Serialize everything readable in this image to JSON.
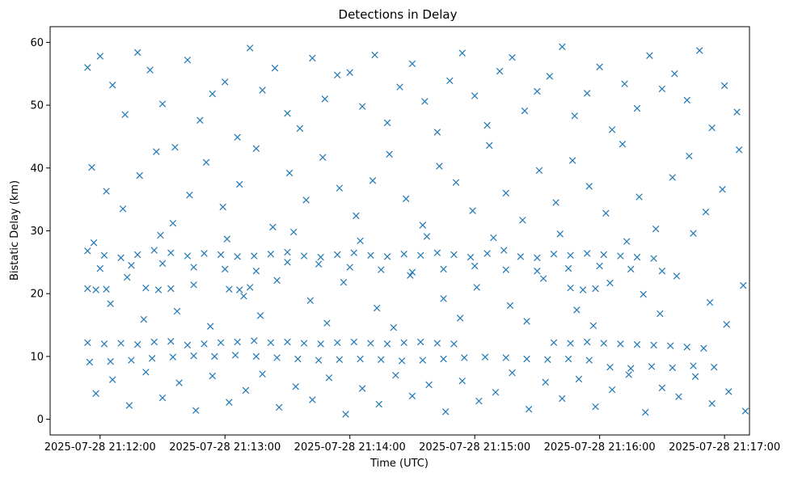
{
  "chart_data": {
    "type": "scatter",
    "title": "Detections in Delay",
    "xlabel": "Time (UTC)",
    "ylabel": "Bistatic Delay (km)",
    "marker": "x",
    "marker_color": "#1f77b4",
    "x_axis": {
      "unit": "seconds after 2025-07-28 21:11:00",
      "range": [
        36,
        372
      ],
      "ticks": [
        60,
        120,
        180,
        240,
        300,
        360
      ],
      "tick_labels": [
        "2025-07-28 21:12:00",
        "2025-07-28 21:13:00",
        "2025-07-28 21:14:00",
        "2025-07-28 21:15:00",
        "2025-07-28 21:16:00",
        "2025-07-28 21:17:00"
      ]
    },
    "y_axis": {
      "range": [
        -2.5,
        62.5
      ],
      "ticks": [
        0,
        10,
        20,
        30,
        40,
        50,
        60
      ],
      "tick_labels": [
        "0",
        "10",
        "20",
        "30",
        "40",
        "50",
        "60"
      ]
    },
    "series": [
      {
        "name": "Detections",
        "points": [
          [
            54,
            26.8
          ],
          [
            62,
            26.1
          ],
          [
            70,
            25.7
          ],
          [
            78,
            26.2
          ],
          [
            86,
            26.9
          ],
          [
            94,
            26.5
          ],
          [
            102,
            26.0
          ],
          [
            110,
            26.4
          ],
          [
            118,
            26.2
          ],
          [
            126,
            25.9
          ],
          [
            134,
            26.0
          ],
          [
            142,
            26.3
          ],
          [
            150,
            26.6
          ],
          [
            158,
            26.0
          ],
          [
            166,
            25.8
          ],
          [
            174,
            26.2
          ],
          [
            182,
            26.5
          ],
          [
            190,
            26.1
          ],
          [
            198,
            25.9
          ],
          [
            206,
            26.3
          ],
          [
            214,
            26.1
          ],
          [
            222,
            26.5
          ],
          [
            230,
            26.2
          ],
          [
            238,
            25.8
          ],
          [
            246,
            26.4
          ],
          [
            254,
            26.9
          ],
          [
            262,
            25.9
          ],
          [
            270,
            25.7
          ],
          [
            278,
            26.3
          ],
          [
            286,
            26.1
          ],
          [
            294,
            26.4
          ],
          [
            302,
            26.2
          ],
          [
            310,
            26.0
          ],
          [
            318,
            25.8
          ],
          [
            326,
            25.6
          ],
          [
            60,
            24.0
          ],
          [
            75,
            24.5
          ],
          [
            90,
            24.8
          ],
          [
            105,
            24.2
          ],
          [
            120,
            23.9
          ],
          [
            135,
            23.6
          ],
          [
            150,
            25.0
          ],
          [
            165,
            24.7
          ],
          [
            180,
            24.2
          ],
          [
            195,
            23.8
          ],
          [
            210,
            23.4
          ],
          [
            225,
            23.9
          ],
          [
            240,
            24.4
          ],
          [
            255,
            23.8
          ],
          [
            270,
            23.6
          ],
          [
            285,
            24.0
          ],
          [
            300,
            24.4
          ],
          [
            315,
            23.9
          ],
          [
            330,
            23.6
          ],
          [
            54,
            20.8
          ],
          [
            58,
            20.6
          ],
          [
            63,
            20.7
          ],
          [
            82,
            20.9
          ],
          [
            88,
            20.6
          ],
          [
            94,
            20.8
          ],
          [
            122,
            20.7
          ],
          [
            127,
            20.6
          ],
          [
            132,
            21.0
          ],
          [
            286,
            20.9
          ],
          [
            292,
            20.6
          ],
          [
            298,
            20.8
          ],
          [
            54,
            12.2
          ],
          [
            62,
            12.0
          ],
          [
            70,
            12.1
          ],
          [
            78,
            11.9
          ],
          [
            86,
            12.3
          ],
          [
            94,
            12.4
          ],
          [
            102,
            11.8
          ],
          [
            110,
            12.0
          ],
          [
            118,
            12.2
          ],
          [
            126,
            12.3
          ],
          [
            134,
            12.5
          ],
          [
            142,
            12.2
          ],
          [
            150,
            12.3
          ],
          [
            158,
            12.1
          ],
          [
            166,
            12.0
          ],
          [
            174,
            12.2
          ],
          [
            182,
            12.3
          ],
          [
            190,
            12.1
          ],
          [
            198,
            12.0
          ],
          [
            206,
            12.2
          ],
          [
            214,
            12.3
          ],
          [
            222,
            12.1
          ],
          [
            230,
            12.0
          ],
          [
            278,
            12.2
          ],
          [
            286,
            12.1
          ],
          [
            294,
            12.3
          ],
          [
            302,
            12.1
          ],
          [
            310,
            12.0
          ],
          [
            318,
            11.9
          ],
          [
            326,
            11.8
          ],
          [
            334,
            11.7
          ],
          [
            342,
            11.5
          ],
          [
            350,
            11.3
          ],
          [
            55,
            9.1
          ],
          [
            65,
            9.2
          ],
          [
            75,
            9.4
          ],
          [
            85,
            9.7
          ],
          [
            95,
            9.9
          ],
          [
            105,
            10.1
          ],
          [
            115,
            10.0
          ],
          [
            125,
            10.2
          ],
          [
            135,
            10.0
          ],
          [
            145,
            9.8
          ],
          [
            155,
            9.6
          ],
          [
            165,
            9.4
          ],
          [
            175,
            9.5
          ],
          [
            185,
            9.6
          ],
          [
            195,
            9.5
          ],
          [
            205,
            9.3
          ],
          [
            215,
            9.4
          ],
          [
            225,
            9.6
          ],
          [
            235,
            9.8
          ],
          [
            245,
            9.9
          ],
          [
            255,
            9.8
          ],
          [
            265,
            9.6
          ],
          [
            275,
            9.5
          ],
          [
            285,
            9.6
          ],
          [
            295,
            9.4
          ],
          [
            305,
            8.3
          ],
          [
            315,
            8.1
          ],
          [
            325,
            8.4
          ],
          [
            335,
            8.2
          ],
          [
            345,
            8.5
          ],
          [
            355,
            8.3
          ],
          [
            54,
            56.0
          ],
          [
            60,
            57.8
          ],
          [
            66,
            53.2
          ],
          [
            72,
            48.5
          ],
          [
            78,
            58.4
          ],
          [
            84,
            55.6
          ],
          [
            90,
            50.2
          ],
          [
            96,
            43.3
          ],
          [
            102,
            57.2
          ],
          [
            108,
            47.6
          ],
          [
            114,
            51.8
          ],
          [
            120,
            53.7
          ],
          [
            126,
            44.9
          ],
          [
            132,
            59.1
          ],
          [
            138,
            52.4
          ],
          [
            144,
            55.9
          ],
          [
            150,
            48.7
          ],
          [
            156,
            46.3
          ],
          [
            162,
            57.5
          ],
          [
            168,
            51.0
          ],
          [
            174,
            54.8
          ],
          [
            180,
            55.2
          ],
          [
            186,
            49.8
          ],
          [
            192,
            58.0
          ],
          [
            198,
            47.2
          ],
          [
            204,
            52.9
          ],
          [
            210,
            56.6
          ],
          [
            216,
            50.6
          ],
          [
            222,
            45.7
          ],
          [
            228,
            53.9
          ],
          [
            234,
            58.3
          ],
          [
            240,
            51.5
          ],
          [
            246,
            46.8
          ],
          [
            252,
            55.4
          ],
          [
            258,
            57.6
          ],
          [
            264,
            49.1
          ],
          [
            270,
            52.2
          ],
          [
            276,
            54.6
          ],
          [
            282,
            59.3
          ],
          [
            288,
            48.3
          ],
          [
            294,
            51.9
          ],
          [
            300,
            56.1
          ],
          [
            306,
            46.1
          ],
          [
            312,
            53.4
          ],
          [
            318,
            49.5
          ],
          [
            324,
            57.9
          ],
          [
            330,
            52.6
          ],
          [
            336,
            55.0
          ],
          [
            342,
            50.8
          ],
          [
            348,
            58.7
          ],
          [
            354,
            46.4
          ],
          [
            360,
            53.1
          ],
          [
            366,
            48.9
          ],
          [
            56,
            40.1
          ],
          [
            63,
            36.3
          ],
          [
            71,
            33.5
          ],
          [
            79,
            38.8
          ],
          [
            87,
            42.6
          ],
          [
            95,
            31.2
          ],
          [
            103,
            35.7
          ],
          [
            111,
            40.9
          ],
          [
            119,
            33.8
          ],
          [
            127,
            37.4
          ],
          [
            135,
            43.1
          ],
          [
            143,
            30.6
          ],
          [
            151,
            39.2
          ],
          [
            159,
            34.9
          ],
          [
            167,
            41.7
          ],
          [
            175,
            36.8
          ],
          [
            183,
            32.4
          ],
          [
            191,
            38.0
          ],
          [
            199,
            42.2
          ],
          [
            207,
            35.1
          ],
          [
            215,
            30.9
          ],
          [
            223,
            40.3
          ],
          [
            231,
            37.7
          ],
          [
            239,
            33.2
          ],
          [
            247,
            43.6
          ],
          [
            255,
            36.0
          ],
          [
            263,
            31.7
          ],
          [
            271,
            39.6
          ],
          [
            279,
            34.5
          ],
          [
            287,
            41.2
          ],
          [
            295,
            37.1
          ],
          [
            303,
            32.8
          ],
          [
            311,
            43.8
          ],
          [
            319,
            35.4
          ],
          [
            327,
            30.3
          ],
          [
            335,
            38.5
          ],
          [
            343,
            41.9
          ],
          [
            351,
            33.0
          ],
          [
            359,
            36.6
          ],
          [
            367,
            42.9
          ],
          [
            57,
            28.1
          ],
          [
            65,
            18.4
          ],
          [
            73,
            22.6
          ],
          [
            81,
            15.9
          ],
          [
            89,
            29.3
          ],
          [
            97,
            17.2
          ],
          [
            105,
            21.4
          ],
          [
            113,
            14.8
          ],
          [
            121,
            28.7
          ],
          [
            129,
            19.6
          ],
          [
            137,
            16.5
          ],
          [
            145,
            22.1
          ],
          [
            153,
            29.8
          ],
          [
            161,
            18.9
          ],
          [
            169,
            15.3
          ],
          [
            177,
            21.8
          ],
          [
            185,
            28.4
          ],
          [
            193,
            17.7
          ],
          [
            201,
            14.6
          ],
          [
            209,
            22.9
          ],
          [
            217,
            29.1
          ],
          [
            225,
            19.2
          ],
          [
            233,
            16.1
          ],
          [
            241,
            21.0
          ],
          [
            249,
            28.9
          ],
          [
            257,
            18.1
          ],
          [
            265,
            15.6
          ],
          [
            273,
            22.4
          ],
          [
            281,
            29.5
          ],
          [
            289,
            17.4
          ],
          [
            297,
            14.9
          ],
          [
            305,
            21.7
          ],
          [
            313,
            28.3
          ],
          [
            321,
            19.9
          ],
          [
            329,
            16.8
          ],
          [
            337,
            22.8
          ],
          [
            345,
            29.6
          ],
          [
            353,
            18.6
          ],
          [
            361,
            15.1
          ],
          [
            369,
            21.3
          ],
          [
            58,
            4.1
          ],
          [
            66,
            6.3
          ],
          [
            74,
            2.2
          ],
          [
            82,
            7.5
          ],
          [
            90,
            3.4
          ],
          [
            98,
            5.8
          ],
          [
            106,
            1.4
          ],
          [
            114,
            6.9
          ],
          [
            122,
            2.7
          ],
          [
            130,
            4.6
          ],
          [
            138,
            7.2
          ],
          [
            146,
            1.9
          ],
          [
            154,
            5.2
          ],
          [
            162,
            3.1
          ],
          [
            170,
            6.6
          ],
          [
            178,
            0.8
          ],
          [
            186,
            4.9
          ],
          [
            194,
            2.4
          ],
          [
            202,
            7.0
          ],
          [
            210,
            3.7
          ],
          [
            218,
            5.5
          ],
          [
            226,
            1.2
          ],
          [
            234,
            6.1
          ],
          [
            242,
            2.9
          ],
          [
            250,
            4.3
          ],
          [
            258,
            7.4
          ],
          [
            266,
            1.6
          ],
          [
            274,
            5.9
          ],
          [
            282,
            3.3
          ],
          [
            290,
            6.4
          ],
          [
            298,
            2.0
          ],
          [
            306,
            4.7
          ],
          [
            314,
            7.1
          ],
          [
            322,
            1.1
          ],
          [
            330,
            5.0
          ],
          [
            338,
            3.6
          ],
          [
            346,
            6.8
          ],
          [
            354,
            2.5
          ],
          [
            362,
            4.4
          ],
          [
            370,
            1.3
          ]
        ]
      }
    ]
  }
}
